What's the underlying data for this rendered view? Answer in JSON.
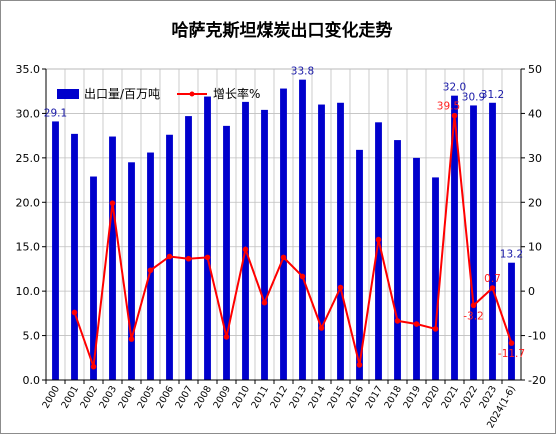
{
  "chart_data": {
    "type": "bar",
    "title": "哈萨克斯坦煤炭出口变化走势",
    "categories": [
      "2000",
      "2001",
      "2002",
      "2003",
      "2004",
      "2005",
      "2006",
      "2007",
      "2008",
      "2009",
      "2010",
      "2011",
      "2012",
      "2013",
      "2014",
      "2015",
      "2016",
      "2017",
      "2018",
      "2019",
      "2020",
      "2021",
      "2022",
      "2023",
      "2024(1-6)"
    ],
    "series": [
      {
        "name": "出口量/百万吨",
        "axis": "left",
        "type": "bar",
        "color": "#0000cc",
        "values": [
          29.1,
          27.7,
          22.9,
          27.4,
          24.5,
          25.6,
          27.6,
          29.7,
          31.9,
          28.6,
          31.3,
          30.4,
          32.8,
          33.8,
          31.0,
          31.2,
          25.9,
          29.0,
          27.0,
          25.0,
          22.8,
          32.0,
          30.9,
          31.2,
          13.2
        ]
      },
      {
        "name": "增长率%",
        "axis": "right",
        "type": "line",
        "color": "#ff0000",
        "values": [
          null,
          -4.8,
          -17.0,
          19.8,
          -10.8,
          4.7,
          7.8,
          7.3,
          7.6,
          -10.3,
          9.4,
          -2.6,
          7.6,
          3.3,
          -8.3,
          0.8,
          -16.6,
          11.6,
          -6.7,
          -7.4,
          -8.5,
          39.5,
          -3.2,
          0.7,
          -11.7
        ]
      }
    ],
    "bar_labels": [
      {
        "index": 0,
        "text": "29.1"
      },
      {
        "index": 13,
        "text": "33.8"
      },
      {
        "index": 21,
        "text": "32.0"
      },
      {
        "index": 22,
        "text": "30.9"
      },
      {
        "index": 23,
        "text": "31.2"
      },
      {
        "index": 24,
        "text": "13.2"
      }
    ],
    "growth_labels": [
      {
        "index": 21,
        "text": "39.5"
      },
      {
        "index": 22,
        "text": "-3.2"
      },
      {
        "index": 23,
        "text": "0.7"
      },
      {
        "index": 24,
        "text": "-11.7"
      }
    ],
    "ylim_left": [
      0,
      35
    ],
    "yticks_left": [
      "0.0",
      "5.0",
      "10.0",
      "15.0",
      "20.0",
      "25.0",
      "30.0",
      "35.0"
    ],
    "ylim_right": [
      -20,
      50
    ],
    "yticks_right": [
      "-20",
      "-10",
      "0",
      "10",
      "20",
      "30",
      "40",
      "50"
    ],
    "grid": true,
    "legend_position": "top-left"
  }
}
